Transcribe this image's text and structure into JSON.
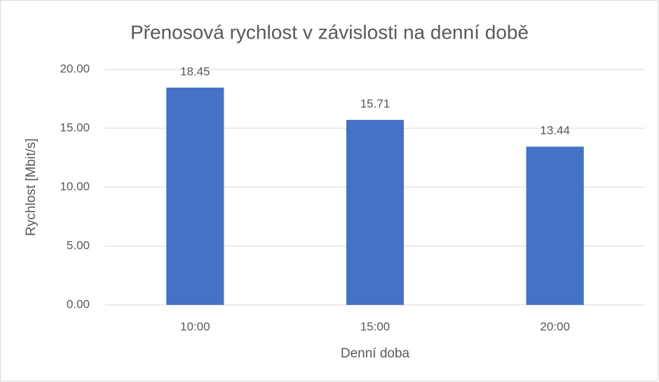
{
  "chart_data": {
    "type": "bar",
    "title": "Přenosová rychlost v závislosti na denní době",
    "x_label": "Denní doba",
    "y_label": "Rychlost [Mbit/s]",
    "categories": [
      "10:00",
      "15:00",
      "20:00"
    ],
    "values": [
      18.45,
      15.71,
      13.44
    ],
    "color": "#4472c4",
    "ylim": [
      0,
      20
    ],
    "yticks": [
      {
        "value": 0,
        "label": "0.00"
      },
      {
        "value": 5,
        "label": "5.00"
      },
      {
        "value": 10,
        "label": "10.00"
      },
      {
        "value": 15,
        "label": "15.00"
      },
      {
        "value": 20,
        "label": "20.00"
      }
    ],
    "grid": true
  }
}
